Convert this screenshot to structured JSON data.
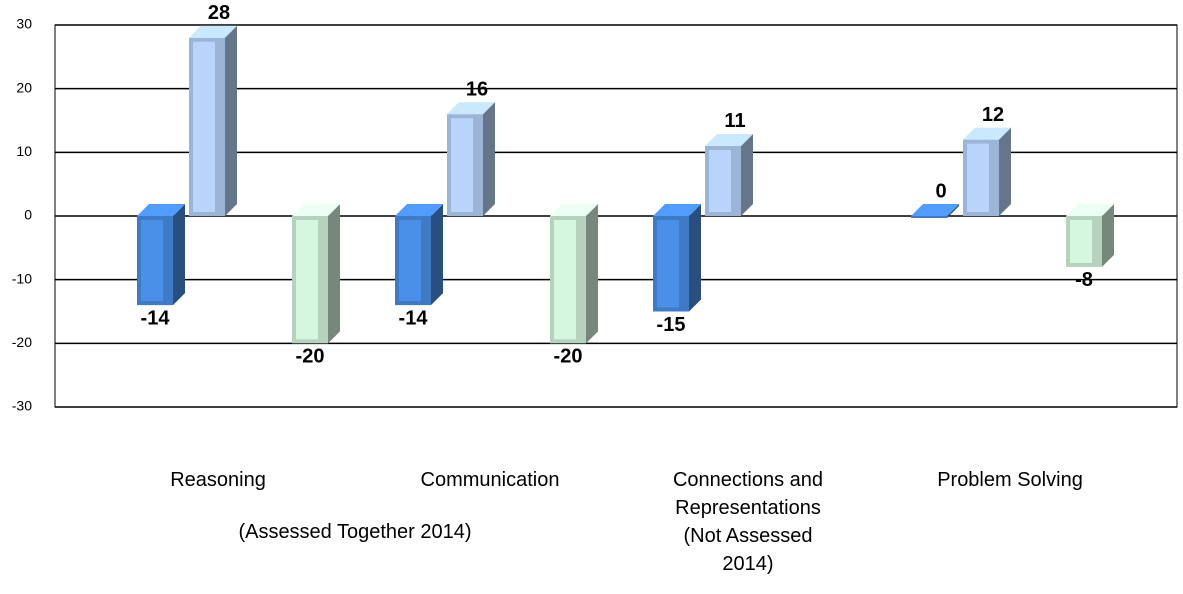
{
  "chart_data": {
    "type": "bar",
    "categories": [
      "Reasoning",
      "Communication",
      "Connections and Representations (Not Assessed 2014)",
      "Problem Solving"
    ],
    "annotation": "(Assessed Together 2014)",
    "series": [
      {
        "color": "#4a8fe8",
        "values": [
          -14,
          -14,
          -15,
          0
        ]
      },
      {
        "color": "#b8d4fb",
        "values": [
          28,
          16,
          11,
          12
        ]
      },
      {
        "color": "#d6f7df",
        "values": [
          -20,
          -20,
          null,
          -8
        ]
      }
    ],
    "ylim": [
      -30,
      30
    ],
    "yticks": [
      -30,
      -20,
      -10,
      0,
      10,
      20,
      30
    ],
    "grid": true
  }
}
